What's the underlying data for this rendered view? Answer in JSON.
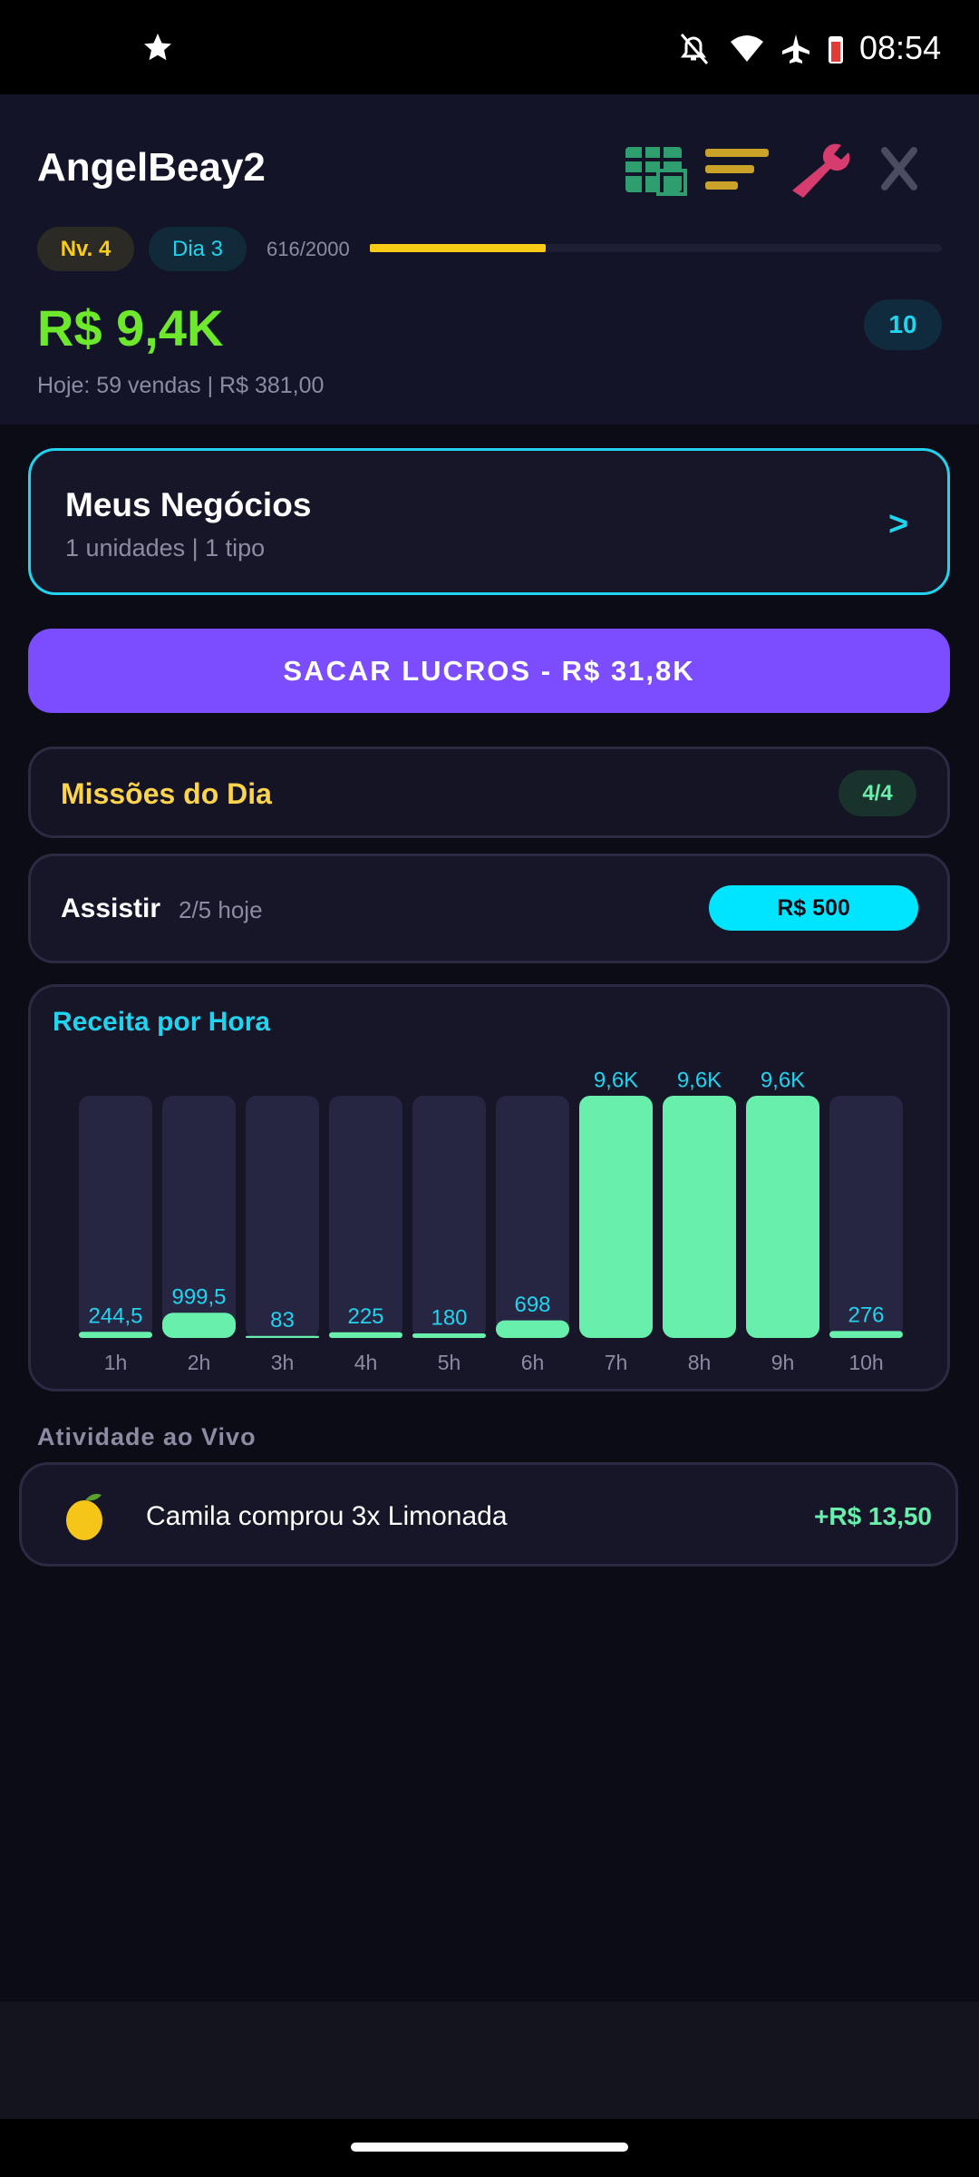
{
  "status_bar": {
    "time": "08:54"
  },
  "header": {
    "username": "AngelBeay2",
    "level": "Nv. 4",
    "day": "Dia 3",
    "xp": {
      "label": "616/2000",
      "value": 616,
      "max": 2000
    },
    "balance": "R$ 9,4K",
    "badge": "10",
    "today": "Hoje: 59 vendas | R$ 381,00"
  },
  "business_card": {
    "title": "Meus Negócios",
    "subtitle": "1 unidades | 1 tipo",
    "arrow": ">"
  },
  "withdraw_button": "SACAR LUCROS - R$ 31,8K",
  "missions": {
    "title": "Missões do Dia",
    "badge": "4/4"
  },
  "watch": {
    "label": "Assistir",
    "count": "2/5 hoje",
    "button": "R$ 500"
  },
  "chart_data": {
    "type": "bar",
    "title": "Receita por Hora",
    "categories": [
      "1h",
      "2h",
      "3h",
      "4h",
      "5h",
      "6h",
      "7h",
      "8h",
      "9h",
      "10h"
    ],
    "values": [
      244.5,
      999.5,
      83,
      225,
      180,
      698,
      9600,
      9600,
      9600,
      276
    ],
    "value_labels": [
      "244,5",
      "999,5",
      "83",
      "225",
      "180",
      "698",
      "9,6K",
      "9,6K",
      "9,6K",
      "276"
    ],
    "ylim": [
      0,
      9600
    ],
    "color": "#69efac",
    "track_color": "#262642",
    "label_color": "#22d3ee"
  },
  "activity": {
    "heading": "Atividade ao Vivo",
    "items": [
      {
        "text": "Camila comprou 3x Limonada",
        "amount": "+R$ 13,50"
      }
    ]
  }
}
